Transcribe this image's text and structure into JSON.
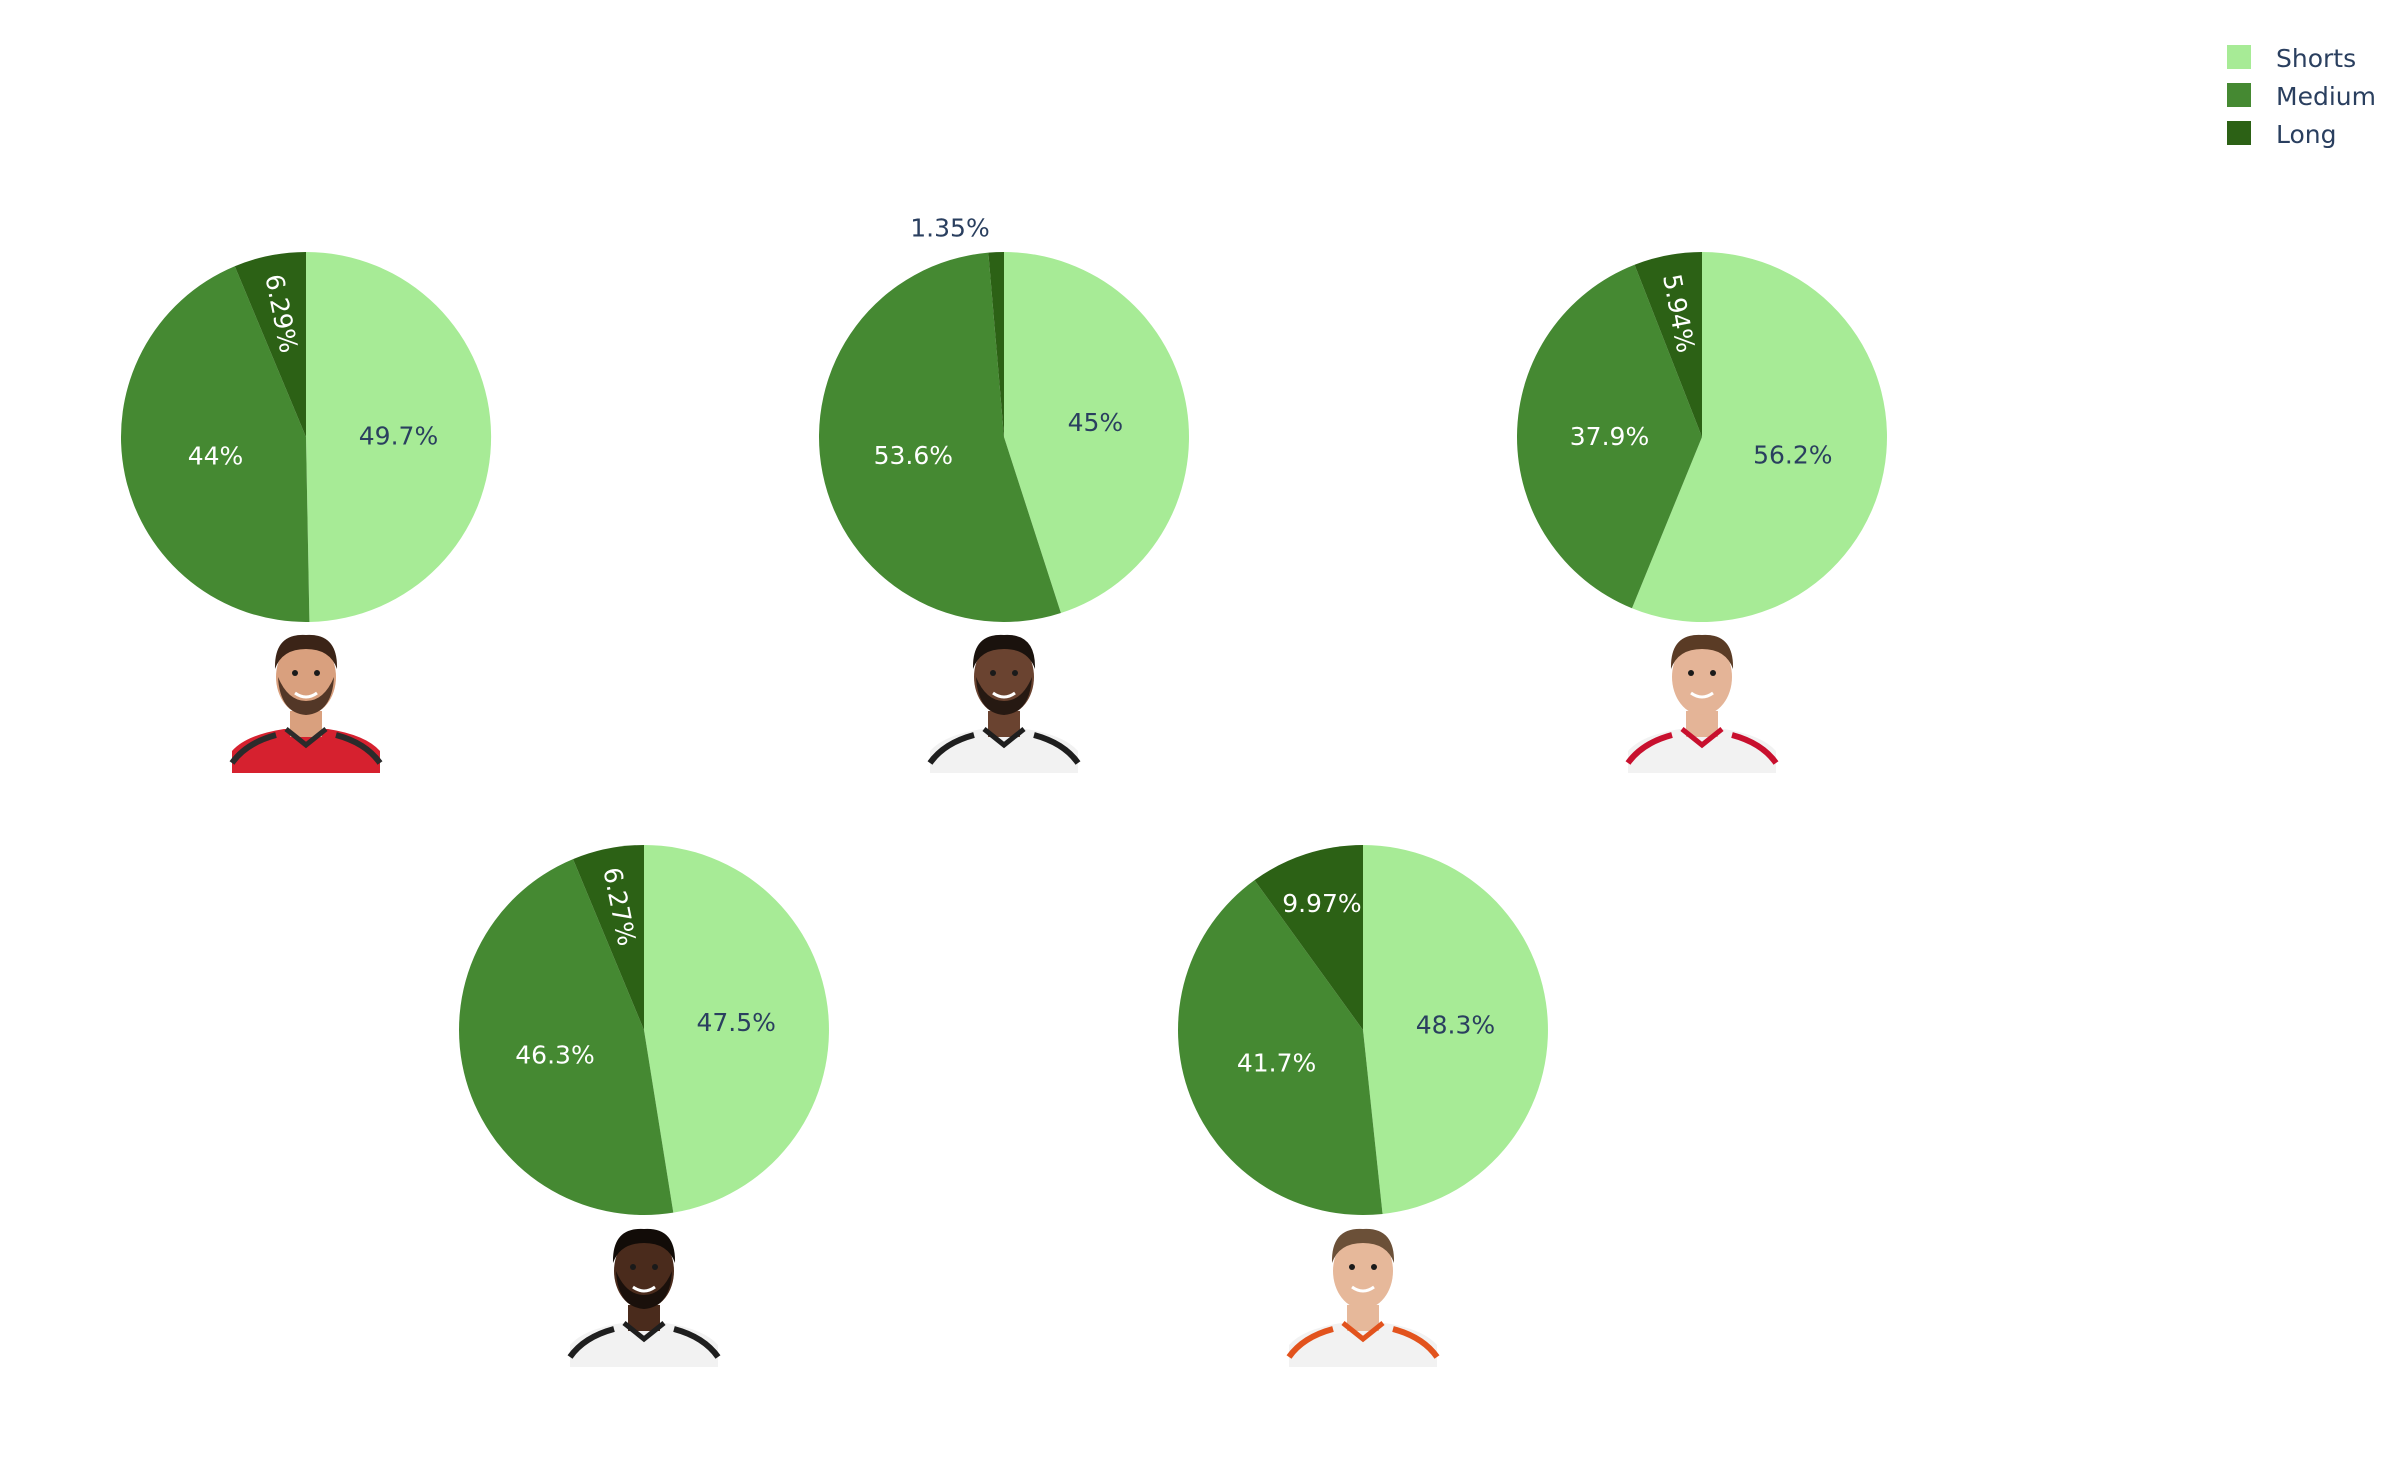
{
  "legend": {
    "position": "top-right",
    "items": [
      {
        "label": "Shorts",
        "color": "#a7eb96"
      },
      {
        "label": "Medium",
        "color": "#458932"
      },
      {
        "label": "Long",
        "color": "#2c6115"
      }
    ]
  },
  "label_colors": {
    "on_light": "#2a3f5f",
    "on_dark": "#ffffff",
    "outside": "#2a3f5f"
  },
  "chart_data": [
    {
      "type": "pie",
      "categories": [
        "Shorts",
        "Medium",
        "Long"
      ],
      "values": [
        49.7,
        44,
        6.29
      ],
      "labels": [
        "49.7%",
        "44%",
        "6.29%"
      ],
      "portrait": "player-1-portrait"
    },
    {
      "type": "pie",
      "categories": [
        "Shorts",
        "Medium",
        "Long"
      ],
      "values": [
        45,
        53.6,
        1.35
      ],
      "labels": [
        "45%",
        "53.6%",
        "1.35%"
      ],
      "portrait": "player-2-portrait"
    },
    {
      "type": "pie",
      "categories": [
        "Shorts",
        "Medium",
        "Long"
      ],
      "values": [
        56.2,
        37.9,
        5.94
      ],
      "labels": [
        "56.2%",
        "37.9%",
        "5.94%"
      ],
      "portrait": "player-3-portrait"
    },
    {
      "type": "pie",
      "categories": [
        "Shorts",
        "Medium",
        "Long"
      ],
      "values": [
        47.5,
        46.3,
        6.27
      ],
      "labels": [
        "47.5%",
        "46.3%",
        "6.27%"
      ],
      "portrait": "player-4-portrait"
    },
    {
      "type": "pie",
      "categories": [
        "Shorts",
        "Medium",
        "Long"
      ],
      "values": [
        48.3,
        41.7,
        9.97
      ],
      "labels": [
        "48.3%",
        "41.7%",
        "9.97%"
      ],
      "portrait": "player-5-portrait"
    }
  ]
}
